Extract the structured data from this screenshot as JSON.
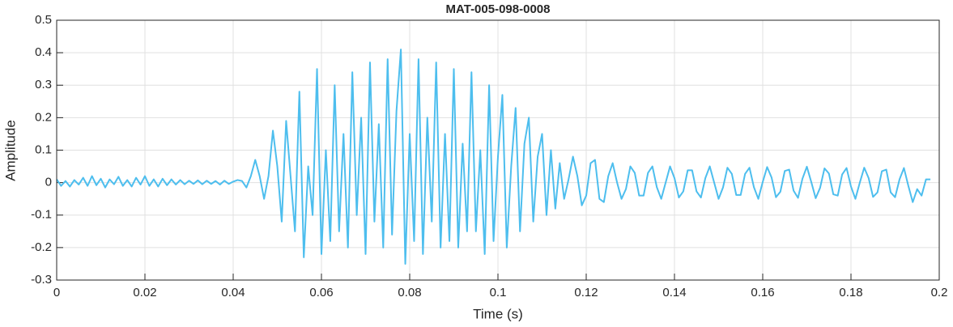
{
  "chart_data": {
    "type": "line",
    "title": "MAT-005-098-0008",
    "x_label": "Time (s)",
    "y_label": "Amplitude",
    "color": "#4dbeee",
    "grid": true,
    "xlim": [
      0,
      0.2
    ],
    "ylim": [
      -0.3,
      0.5
    ],
    "xticks": [
      0,
      0.02,
      0.04,
      0.06,
      0.08,
      0.1,
      0.12,
      0.14,
      0.16,
      0.18,
      0.2
    ],
    "yticks": [
      -0.3,
      -0.2,
      -0.1,
      0,
      0.1,
      0.2,
      0.3,
      0.4,
      0.5
    ],
    "x": [
      0,
      0.001,
      0.002,
      0.003,
      0.004,
      0.005,
      0.006,
      0.007,
      0.008,
      0.009,
      0.01,
      0.011,
      0.012,
      0.013,
      0.014,
      0.015,
      0.016,
      0.017,
      0.018,
      0.019,
      0.02,
      0.021,
      0.022,
      0.023,
      0.024,
      0.025,
      0.026,
      0.027,
      0.028,
      0.029,
      0.03,
      0.031,
      0.032,
      0.033,
      0.034,
      0.035,
      0.036,
      0.037,
      0.038,
      0.039,
      0.04,
      0.041,
      0.042,
      0.043,
      0.044,
      0.045,
      0.046,
      0.047,
      0.048,
      0.049,
      0.05,
      0.051,
      0.052,
      0.053,
      0.054,
      0.055,
      0.056,
      0.057,
      0.058,
      0.059,
      0.06,
      0.061,
      0.062,
      0.063,
      0.064,
      0.065,
      0.066,
      0.067,
      0.068,
      0.069,
      0.07,
      0.071,
      0.072,
      0.073,
      0.074,
      0.075,
      0.076,
      0.077,
      0.078,
      0.079,
      0.08,
      0.081,
      0.082,
      0.083,
      0.084,
      0.085,
      0.086,
      0.087,
      0.088,
      0.089,
      0.09,
      0.091,
      0.092,
      0.093,
      0.094,
      0.095,
      0.096,
      0.097,
      0.098,
      0.099,
      0.1,
      0.101,
      0.102,
      0.103,
      0.104,
      0.105,
      0.106,
      0.107,
      0.108,
      0.109,
      0.11,
      0.111,
      0.112,
      0.113,
      0.114,
      0.115,
      0.116,
      0.117,
      0.118,
      0.119,
      0.12,
      0.121,
      0.122,
      0.123,
      0.124,
      0.125,
      0.126,
      0.127,
      0.128,
      0.129,
      0.13,
      0.131,
      0.132,
      0.133,
      0.134,
      0.135,
      0.136,
      0.137,
      0.138,
      0.139,
      0.14,
      0.141,
      0.142,
      0.143,
      0.144,
      0.145,
      0.146,
      0.147,
      0.148,
      0.149,
      0.15,
      0.151,
      0.152,
      0.153,
      0.154,
      0.155,
      0.156,
      0.157,
      0.158,
      0.159,
      0.16,
      0.161,
      0.162,
      0.163,
      0.164,
      0.165,
      0.166,
      0.167,
      0.168,
      0.169,
      0.17,
      0.171,
      0.172,
      0.173,
      0.174,
      0.175,
      0.176,
      0.177,
      0.178,
      0.179,
      0.18,
      0.181,
      0.182,
      0.183,
      0.184,
      0.185,
      0.186,
      0.187,
      0.188,
      0.189,
      0.19,
      0.191,
      0.192,
      0.193,
      0.194,
      0.195,
      0.196,
      0.197,
      0.198
    ],
    "values": [
      0.01,
      -0.01,
      0.005,
      -0.012,
      0.008,
      -0.006,
      0.015,
      -0.01,
      0.02,
      -0.008,
      0.012,
      -0.015,
      0.01,
      -0.005,
      0.018,
      -0.01,
      0.008,
      -0.012,
      0.015,
      -0.006,
      0.02,
      -0.01,
      0.01,
      -0.012,
      0.012,
      -0.008,
      0.01,
      -0.006,
      0.008,
      -0.005,
      0.006,
      -0.004,
      0.007,
      -0.005,
      0.006,
      -0.004,
      0.005,
      -0.006,
      0.006,
      -0.004,
      0.003,
      0.008,
      0.005,
      -0.015,
      0.02,
      0.07,
      0.02,
      -0.05,
      0.02,
      0.16,
      0.05,
      -0.12,
      0.19,
      0.02,
      -0.15,
      0.28,
      -0.23,
      0.05,
      -0.1,
      0.35,
      -0.22,
      0.1,
      -0.18,
      0.3,
      -0.15,
      0.15,
      -0.2,
      0.34,
      -0.1,
      0.2,
      -0.22,
      0.37,
      -0.12,
      0.18,
      -0.2,
      0.38,
      -0.16,
      0.22,
      0.41,
      -0.25,
      0.15,
      -0.18,
      0.38,
      -0.22,
      0.2,
      -0.12,
      0.37,
      -0.2,
      0.15,
      -0.18,
      0.35,
      -0.2,
      0.12,
      -0.15,
      0.34,
      -0.15,
      0.1,
      -0.22,
      0.3,
      -0.18,
      0.08,
      0.27,
      -0.2,
      0.05,
      0.23,
      -0.15,
      0.12,
      0.2,
      -0.12,
      0.08,
      0.15,
      -0.1,
      0.1,
      -0.08,
      0.06,
      -0.05,
      0.01,
      0.08,
      0.02,
      -0.07,
      -0.04,
      0.06,
      0.07,
      -0.05,
      -0.06,
      0.02,
      0.06,
      0,
      -0.05,
      -0.02,
      0.05,
      0.03,
      -0.04,
      -0.04,
      0.03,
      0.05,
      -0.014,
      -0.05,
      0,
      0.05,
      0.014,
      -0.046,
      -0.027,
      0.038,
      0.038,
      -0.027,
      -0.046,
      0.014,
      0.05,
      0,
      -0.05,
      -0.015,
      0.046,
      0.027,
      -0.038,
      -0.038,
      0.027,
      0.046,
      -0.014,
      -0.05,
      0.002,
      0.048,
      0.016,
      -0.045,
      -0.028,
      0.036,
      0.04,
      -0.025,
      -0.047,
      0.012,
      0.049,
      0.002,
      -0.048,
      -0.016,
      0.044,
      0.028,
      -0.036,
      -0.04,
      0.025,
      0.045,
      -0.012,
      -0.05,
      0,
      0.046,
      0.014,
      -0.044,
      -0.03,
      0.035,
      0.04,
      -0.03,
      -0.045,
      0.01,
      0.045,
      -0.01,
      -0.06,
      -0.02,
      -0.04,
      0.01,
      0.01
    ]
  }
}
